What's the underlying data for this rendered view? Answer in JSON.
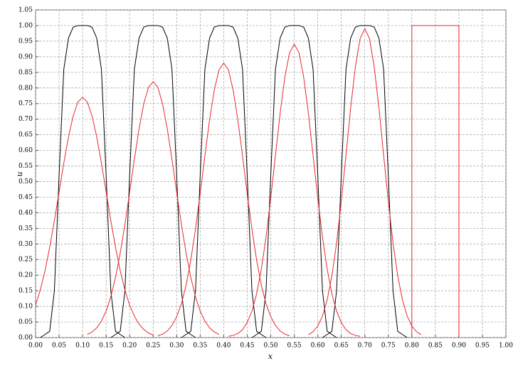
{
  "chart_data": {
    "type": "line",
    "xlabel": "x",
    "ylabel": "u",
    "xlim": [
      0,
      1
    ],
    "ylim": [
      0,
      1.05
    ],
    "grid": true,
    "xticks": [
      {
        "value": 0,
        "label": "0.00"
      },
      {
        "value": 0.05,
        "label": "0.05"
      },
      {
        "value": 0.1,
        "label": "0.10"
      },
      {
        "value": 0.15,
        "label": "0.15"
      },
      {
        "value": 0.2,
        "label": "0.20"
      },
      {
        "value": 0.25,
        "label": "0.25"
      },
      {
        "value": 0.3,
        "label": "0.30"
      },
      {
        "value": 0.35,
        "label": "0.35"
      },
      {
        "value": 0.4,
        "label": "0.40"
      },
      {
        "value": 0.45,
        "label": "0.45"
      },
      {
        "value": 0.5,
        "label": "0.50"
      },
      {
        "value": 0.55,
        "label": "0.55"
      },
      {
        "value": 0.6,
        "label": "0.60"
      },
      {
        "value": 0.65,
        "label": "0.65"
      },
      {
        "value": 0.7,
        "label": "0.70"
      },
      {
        "value": 0.75,
        "label": "0.75"
      },
      {
        "value": 0.8,
        "label": "0.80"
      },
      {
        "value": 0.85,
        "label": "0.85"
      },
      {
        "value": 0.9,
        "label": "0.90"
      },
      {
        "value": 0.95,
        "label": "0.95"
      },
      {
        "value": 1,
        "label": "1.00"
      }
    ],
    "yticks": [
      {
        "value": 0,
        "label": "0.00"
      },
      {
        "value": 0.05,
        "label": "0.05"
      },
      {
        "value": 0.1,
        "label": "0.10"
      },
      {
        "value": 0.15,
        "label": "0.15"
      },
      {
        "value": 0.2,
        "label": "0.20"
      },
      {
        "value": 0.25,
        "label": "0.25"
      },
      {
        "value": 0.3,
        "label": "0.30"
      },
      {
        "value": 0.35,
        "label": "0.35"
      },
      {
        "value": 0.4,
        "label": "0.40"
      },
      {
        "value": 0.45,
        "label": "0.45"
      },
      {
        "value": 0.5,
        "label": "0.50"
      },
      {
        "value": 0.55,
        "label": "0.55"
      },
      {
        "value": 0.6,
        "label": "0.60"
      },
      {
        "value": 0.65,
        "label": "0.65"
      },
      {
        "value": 0.7,
        "label": "0.70"
      },
      {
        "value": 0.75,
        "label": "0.75"
      },
      {
        "value": 0.8,
        "label": "0.80"
      },
      {
        "value": 0.85,
        "label": "0.85"
      },
      {
        "value": 0.9,
        "label": "0.90"
      },
      {
        "value": 0.95,
        "label": "0.95"
      },
      {
        "value": 1,
        "label": "1.00"
      },
      {
        "value": 1.05,
        "label": "1.05"
      }
    ],
    "series": [
      {
        "color": "#000000",
        "x": [
          0.01,
          0.02,
          0.03,
          0.04,
          0.05,
          0.06,
          0.07,
          0.08,
          0.09,
          0.1,
          0.11,
          0.12,
          0.13,
          0.14,
          0.15,
          0.16,
          0.17,
          0.18,
          0.19
        ],
        "values": [
          0,
          0.01,
          0.02,
          0.15,
          0.52,
          0.86,
          0.96,
          0.995,
          1,
          1,
          1,
          0.995,
          0.96,
          0.86,
          0.52,
          0.15,
          0.02,
          0.01,
          0
        ]
      },
      {
        "color": "#000000",
        "x": [
          0.16,
          0.17,
          0.18,
          0.19,
          0.2,
          0.21,
          0.22,
          0.23,
          0.24,
          0.25,
          0.26,
          0.27,
          0.28,
          0.29,
          0.3,
          0.31,
          0.32,
          0.33,
          0.34
        ],
        "values": [
          0,
          0.01,
          0.02,
          0.15,
          0.52,
          0.86,
          0.96,
          0.995,
          1,
          1,
          1,
          0.995,
          0.96,
          0.86,
          0.52,
          0.15,
          0.02,
          0.01,
          0
        ]
      },
      {
        "color": "#000000",
        "x": [
          0.31,
          0.32,
          0.33,
          0.34,
          0.35,
          0.36,
          0.37,
          0.38,
          0.39,
          0.4,
          0.41,
          0.42,
          0.43,
          0.44,
          0.45,
          0.46,
          0.47,
          0.48,
          0.49
        ],
        "values": [
          0,
          0.01,
          0.02,
          0.15,
          0.52,
          0.86,
          0.96,
          0.995,
          1,
          1,
          1,
          0.995,
          0.96,
          0.86,
          0.52,
          0.15,
          0.02,
          0.01,
          0
        ]
      },
      {
        "color": "#000000",
        "x": [
          0.46,
          0.47,
          0.48,
          0.49,
          0.5,
          0.51,
          0.52,
          0.53,
          0.54,
          0.55,
          0.56,
          0.57,
          0.58,
          0.59,
          0.6,
          0.61,
          0.62,
          0.63,
          0.64
        ],
        "values": [
          0,
          0.01,
          0.02,
          0.15,
          0.52,
          0.86,
          0.96,
          0.995,
          1,
          1,
          1,
          0.995,
          0.96,
          0.86,
          0.52,
          0.15,
          0.02,
          0.01,
          0
        ]
      },
      {
        "color": "#000000",
        "x": [
          0.61,
          0.62,
          0.63,
          0.64,
          0.65,
          0.66,
          0.67,
          0.68,
          0.69,
          0.7,
          0.71,
          0.72,
          0.73,
          0.74,
          0.75,
          0.76,
          0.77,
          0.78,
          0.79
        ],
        "values": [
          0,
          0.01,
          0.02,
          0.15,
          0.52,
          0.86,
          0.96,
          0.995,
          1,
          1,
          1,
          0.995,
          0.96,
          0.86,
          0.52,
          0.15,
          0.02,
          0.01,
          0
        ]
      },
      {
        "color": "#e8262b",
        "x": [
          0,
          0.01,
          0.02,
          0.03,
          0.04,
          0.05,
          0.06,
          0.07,
          0.08,
          0.09,
          0.1,
          0.11,
          0.12,
          0.13,
          0.14,
          0.15,
          0.16,
          0.17,
          0.18,
          0.19,
          0.2,
          0.21,
          0.22,
          0.23,
          0.24,
          0.25
        ],
        "values": [
          0.104,
          0.152,
          0.214,
          0.289,
          0.375,
          0.467,
          0.559,
          0.643,
          0.711,
          0.755,
          0.77,
          0.755,
          0.711,
          0.643,
          0.559,
          0.467,
          0.375,
          0.289,
          0.214,
          0.152,
          0.104,
          0.069,
          0.043,
          0.026,
          0.015,
          0.008
        ]
      },
      {
        "color": "#e8262b",
        "x": [
          0.11,
          0.12,
          0.13,
          0.14,
          0.15,
          0.16,
          0.17,
          0.18,
          0.19,
          0.2,
          0.21,
          0.22,
          0.23,
          0.24,
          0.25,
          0.26,
          0.27,
          0.28,
          0.29,
          0.3,
          0.31,
          0.32,
          0.33,
          0.34,
          0.35,
          0.36,
          0.37,
          0.38,
          0.39
        ],
        "values": [
          0.01,
          0.018,
          0.031,
          0.053,
          0.085,
          0.131,
          0.193,
          0.271,
          0.363,
          0.466,
          0.571,
          0.669,
          0.749,
          0.802,
          0.82,
          0.802,
          0.749,
          0.669,
          0.571,
          0.466,
          0.363,
          0.271,
          0.193,
          0.131,
          0.085,
          0.053,
          0.031,
          0.018,
          0.01
        ]
      },
      {
        "color": "#e8262b",
        "x": [
          0.26,
          0.27,
          0.28,
          0.29,
          0.3,
          0.31,
          0.32,
          0.33,
          0.34,
          0.35,
          0.36,
          0.37,
          0.38,
          0.39,
          0.4,
          0.41,
          0.42,
          0.43,
          0.44,
          0.45,
          0.46,
          0.47,
          0.48,
          0.49,
          0.5,
          0.51,
          0.52,
          0.53,
          0.54
        ],
        "values": [
          0.006,
          0.011,
          0.021,
          0.039,
          0.067,
          0.108,
          0.168,
          0.248,
          0.348,
          0.461,
          0.583,
          0.698,
          0.794,
          0.858,
          0.88,
          0.858,
          0.794,
          0.698,
          0.583,
          0.461,
          0.348,
          0.248,
          0.168,
          0.108,
          0.067,
          0.039,
          0.021,
          0.011,
          0.006
        ]
      },
      {
        "color": "#e8262b",
        "x": [
          0.41,
          0.42,
          0.43,
          0.44,
          0.45,
          0.46,
          0.47,
          0.48,
          0.49,
          0.5,
          0.51,
          0.52,
          0.53,
          0.54,
          0.55,
          0.56,
          0.57,
          0.58,
          0.59,
          0.6,
          0.61,
          0.62,
          0.63,
          0.64,
          0.65,
          0.66,
          0.67,
          0.68,
          0.69
        ],
        "values": [
          0.004,
          0.007,
          0.013,
          0.025,
          0.048,
          0.085,
          0.14,
          0.219,
          0.322,
          0.447,
          0.584,
          0.719,
          0.835,
          0.913,
          0.94,
          0.913,
          0.835,
          0.719,
          0.584,
          0.447,
          0.322,
          0.219,
          0.14,
          0.085,
          0.048,
          0.025,
          0.013,
          0.007,
          0.004
        ]
      },
      {
        "color": "#e8262b",
        "x": [
          0.58,
          0.59,
          0.6,
          0.61,
          0.62,
          0.63,
          0.64,
          0.65,
          0.66,
          0.67,
          0.68,
          0.69,
          0.7,
          0.71,
          0.72,
          0.73,
          0.74,
          0.75,
          0.76,
          0.77,
          0.78,
          0.79,
          0.8,
          0.81,
          0.82
        ],
        "values": [
          0.009,
          0.019,
          0.037,
          0.069,
          0.121,
          0.198,
          0.303,
          0.436,
          0.585,
          0.737,
          0.868,
          0.958,
          0.99,
          0.958,
          0.868,
          0.737,
          0.585,
          0.436,
          0.303,
          0.198,
          0.121,
          0.069,
          0.037,
          0.019,
          0.009
        ]
      },
      {
        "color": "#e8262b",
        "x": [
          0.8,
          0.8,
          0.9,
          0.9
        ],
        "values": [
          0,
          1,
          1,
          0
        ]
      }
    ]
  }
}
